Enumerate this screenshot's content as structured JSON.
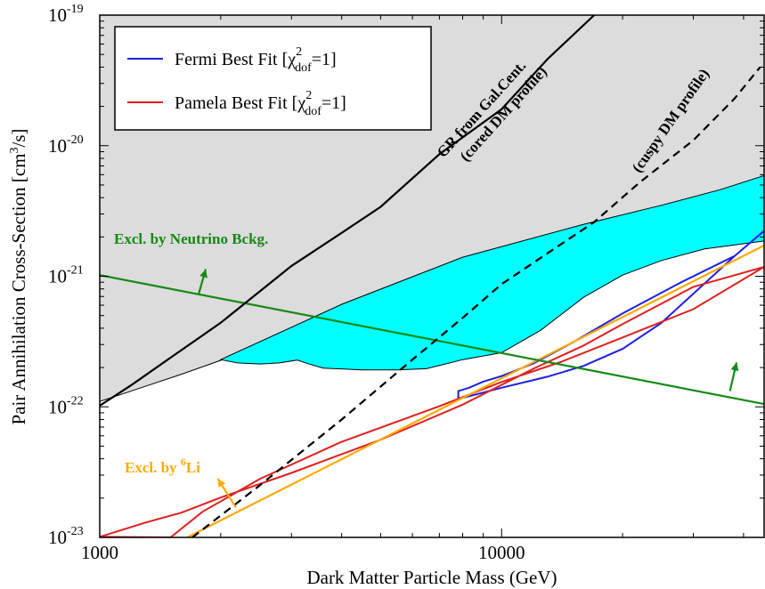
{
  "chart_data": {
    "type": "line",
    "title": "",
    "xlabel": "Dark Matter Particle Mass (GeV)",
    "ylabel": "Pair Annihilation Cross-Section [cm³/s]",
    "xscale": "log",
    "yscale": "log",
    "xlim": [
      1000,
      45000
    ],
    "ylim": [
      1e-23,
      1e-19
    ],
    "x_ticks": [
      {
        "value": 1000,
        "label": "1000"
      },
      {
        "value": 10000,
        "label": "10000"
      }
    ],
    "y_ticks": [
      {
        "value": 1e-23,
        "mant": "10",
        "exp": "-23"
      },
      {
        "value": 1e-22,
        "mant": "10",
        "exp": "-22"
      },
      {
        "value": 1e-21,
        "mant": "10",
        "exp": "-21"
      },
      {
        "value": 1e-20,
        "mant": "10",
        "exp": "-20"
      },
      {
        "value": 1e-19,
        "mant": "10",
        "exp": "-19"
      }
    ],
    "grid": false,
    "legend_position": "top-left",
    "legend": [
      {
        "color": "#1f1fe0",
        "text": "Fermi Best Fit [χ",
        "sup": "2",
        "sub": "dof",
        "tail": "=1]"
      },
      {
        "color": "#e01f1f",
        "text": "Pamela Best Fit [χ",
        "sup": "2",
        "sub": "dof",
        "tail": "=1]"
      }
    ],
    "colors": {
      "excluded_region": "#dcdcdc",
      "band": "#00ffff",
      "fermi": "#1f1fe0",
      "pamela": "#e01f1f",
      "lithium": "#ffaa00",
      "neutrino": "#138a13",
      "gr": "#000000"
    },
    "excluded_region_boundary": [
      [
        1000,
        1.1e-22
      ],
      [
        1250,
        1.38e-22
      ],
      [
        1600,
        1.78e-22
      ],
      [
        2000,
        2.27e-22
      ],
      [
        2500,
        2.85e-22
      ],
      [
        3200,
        3.75e-22
      ],
      [
        4000,
        4.8e-22
      ],
      [
        5000,
        6.2e-22
      ],
      [
        6300,
        7.9e-22
      ],
      [
        8000,
        1e-21
      ],
      [
        10000,
        1.23e-21
      ],
      [
        12500,
        1.38e-21
      ],
      [
        16000,
        1.49e-21
      ],
      [
        20000,
        1.58e-21
      ],
      [
        25000,
        1.67e-21
      ],
      [
        32000,
        1.82e-21
      ],
      [
        45000,
        1.86e-21
      ]
    ],
    "band_upper": [
      [
        2000,
        2.3e-22
      ],
      [
        4000,
        6.1e-22
      ],
      [
        8000,
        1.4e-21
      ],
      [
        16000,
        2.5e-21
      ],
      [
        25000,
        3.5e-21
      ],
      [
        35000,
        4.6e-21
      ],
      [
        45000,
        5.9e-21
      ]
    ],
    "band_lower": [
      [
        2000,
        2.3e-22
      ],
      [
        2200,
        2.17e-22
      ],
      [
        2500,
        2.13e-22
      ],
      [
        2800,
        2.17e-22
      ],
      [
        3100,
        2.28e-22
      ],
      [
        3300,
        2.14e-22
      ],
      [
        3600,
        1.98e-22
      ],
      [
        4500,
        1.92e-22
      ],
      [
        5500,
        1.92e-22
      ],
      [
        6500,
        1.96e-22
      ],
      [
        8000,
        2.3e-22
      ],
      [
        10000,
        2.6e-22
      ],
      [
        12500,
        3.85e-22
      ],
      [
        16000,
        6.9e-22
      ],
      [
        20000,
        1.02e-21
      ],
      [
        25000,
        1.32e-21
      ],
      [
        32000,
        1.62e-21
      ],
      [
        45000,
        1.86e-21
      ]
    ],
    "series": [
      {
        "name": "Fermi Best Fit [χ²dof=1]",
        "key": "fermi",
        "closed": true,
        "points": [
          [
            7800,
            1.32e-22
          ],
          [
            8300,
            1.4e-22
          ],
          [
            9000,
            1.56e-22
          ],
          [
            10000,
            1.72e-22
          ],
          [
            12000,
            2.15e-22
          ],
          [
            15000,
            3.1e-22
          ],
          [
            20000,
            5.2e-22
          ],
          [
            28000,
            9e-22
          ],
          [
            38000,
            1.43e-21
          ],
          [
            45000,
            2.23e-21
          ],
          [
            38000,
            1.43e-21
          ],
          [
            25000,
            4.4e-22
          ],
          [
            20000,
            2.78e-22
          ],
          [
            16000,
            2.06e-22
          ],
          [
            13000,
            1.7e-22
          ],
          [
            10000,
            1.4e-22
          ],
          [
            8000,
            1.17e-22
          ],
          [
            7800,
            1.17e-22
          ],
          [
            7800,
            1.32e-22
          ]
        ]
      },
      {
        "name": "Pamela Best Fit [χ²dof=1]",
        "key": "pamela",
        "closed": true,
        "points": [
          [
            1000,
            1.01e-23
          ],
          [
            1300,
            1.3e-23
          ],
          [
            1600,
            1.55e-23
          ],
          [
            2000,
            2.02e-23
          ],
          [
            3000,
            3.12e-23
          ],
          [
            5000,
            5.6e-23
          ],
          [
            8000,
            1.04e-22
          ],
          [
            12000,
            1.96e-22
          ],
          [
            16000,
            2.95e-22
          ],
          [
            20000,
            4.3e-22
          ],
          [
            30000,
            8.3e-22
          ],
          [
            45000,
            1.18e-21
          ],
          [
            30000,
            5.6e-22
          ],
          [
            20000,
            3.4e-22
          ],
          [
            14000,
            2.2e-22
          ],
          [
            10000,
            1.55e-22
          ],
          [
            7000,
            1.01e-22
          ],
          [
            4000,
            5.4e-23
          ],
          [
            2500,
            2.8e-23
          ],
          [
            1800,
            1.57e-23
          ],
          [
            1500,
            1e-23
          ]
        ]
      },
      {
        "name": "Excl. by ⁶Li",
        "key": "lithium",
        "points": [
          [
            1650,
            1e-23
          ],
          [
            45000,
            1.72e-21
          ]
        ]
      },
      {
        "name": "Excl. by Neutrino Bckg.",
        "key": "neutrino",
        "points": [
          [
            1000,
            1.02e-21
          ],
          [
            45000,
            1.05e-22
          ]
        ]
      },
      {
        "name": "GR from Gal.Cent. (cored DM profile)",
        "key": "gr",
        "points": [
          [
            1000,
            1.02e-22
          ],
          [
            1200,
            1.47e-22
          ],
          [
            1500,
            2.38e-22
          ],
          [
            2000,
            4.4e-22
          ],
          [
            3000,
            1.2e-21
          ],
          [
            4000,
            2.15e-21
          ],
          [
            5000,
            3.4e-21
          ],
          [
            7000,
            8.6e-21
          ],
          [
            10000,
            1.9e-20
          ],
          [
            13000,
            4.6e-20
          ],
          [
            17000,
            1e-19
          ]
        ]
      },
      {
        "name": "(cuspy DM profile)",
        "key": "gr",
        "dashed": true,
        "points": [
          [
            1700,
            1e-23
          ],
          [
            2500,
            2.5e-23
          ],
          [
            4000,
            8e-23
          ],
          [
            6000,
            2.3e-22
          ],
          [
            8000,
            4.8e-22
          ],
          [
            10000,
            8.7e-22
          ],
          [
            13000,
            1.5e-21
          ],
          [
            17000,
            2.6e-21
          ],
          [
            22000,
            5.2e-21
          ],
          [
            30000,
            1.1e-20
          ],
          [
            38000,
            2.3e-20
          ],
          [
            44000,
            4e-20
          ]
        ]
      }
    ],
    "annotations": {
      "neutrino_label": "Excl. by Neutrino Bckg.",
      "lithium_label_pre": "Excl. by ",
      "lithium_label_sup": "6",
      "lithium_label_post": "Li",
      "gr_label_line1": "GR from Gal.Cent.",
      "gr_label_line2": "(cored DM profile)",
      "cuspy_label": "(cuspy DM profile)"
    }
  }
}
